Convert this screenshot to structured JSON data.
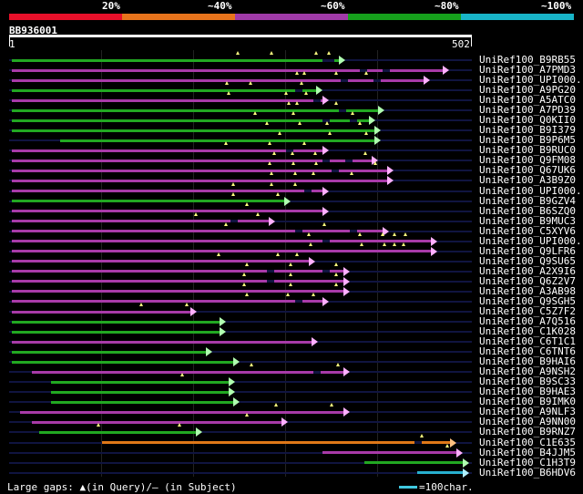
{
  "legend": [
    {
      "label": "20%",
      "color": "#e8102a"
    },
    {
      "label": "~40%",
      "color": "#e8741c"
    },
    {
      "label": "~60%",
      "color": "#a03aa8"
    },
    {
      "label": "~80%",
      "color": "#16a01c"
    },
    {
      "label": "~100%",
      "color": "#18b4c8"
    }
  ],
  "query": {
    "name": "BB936001",
    "start": "1",
    "end": "502"
  },
  "footer": {
    "gaps_text": "Large gaps: ▲(in Query)/– (in Subject)",
    "scale_text": "=100char."
  },
  "hits": [
    {
      "label": "UniRef100_B9RB55",
      "color": "green",
      "start": 3,
      "end": 358,
      "gaps": [
        248,
        285,
        333,
        347
      ],
      "dashes": [
        340,
        345
      ]
    },
    {
      "label": "UniRef100_A7PMD3",
      "color": "purple",
      "start": 3,
      "end": 470,
      "gaps": [],
      "dashes": [
        380,
        405
      ]
    },
    {
      "label": "UniRef100_UPI000..",
      "color": "purple",
      "start": 3,
      "end": 450,
      "gaps": [
        312,
        320,
        355,
        387
      ],
      "dashes": [
        360,
        395
      ]
    },
    {
      "label": "UniRef100_A9PG20",
      "color": "green",
      "start": 3,
      "end": 333,
      "gaps": [
        236,
        262,
        317
      ],
      "dashes": [
        310
      ]
    },
    {
      "label": "UniRef100_A5ATC0",
      "color": "purple",
      "start": 3,
      "end": 340,
      "gaps": [
        238,
        300,
        322
      ],
      "dashes": [
        330
      ]
    },
    {
      "label": "UniRef100_A7PD39",
      "color": "green",
      "start": 3,
      "end": 400,
      "gaps": [
        303,
        312,
        355
      ],
      "dashes": [
        358
      ]
    },
    {
      "label": "UniRef100_Q0KII0",
      "color": "green",
      "start": 3,
      "end": 390,
      "gaps": [
        267,
        308,
        373
      ],
      "dashes": [
        340,
        370
      ]
    },
    {
      "label": "UniRef100_B9I379",
      "color": "green",
      "start": 3,
      "end": 396,
      "gaps": [
        280,
        315,
        345,
        380
      ],
      "dashes": []
    },
    {
      "label": "UniRef100_B9P6M5",
      "color": "green",
      "start": 55,
      "end": 396,
      "gaps": [
        293,
        348,
        387
      ],
      "dashes": []
    },
    {
      "label": "UniRef100_B9RUC0",
      "color": "purple",
      "start": 3,
      "end": 340,
      "gaps": [
        235,
        283,
        320
      ],
      "dashes": [
        300
      ]
    },
    {
      "label": "UniRef100_Q9FM08",
      "color": "purple",
      "start": 3,
      "end": 393,
      "gaps": [
        288,
        307,
        332,
        386
      ],
      "dashes": [
        340,
        365
      ]
    },
    {
      "label": "UniRef100_Q67UK6",
      "color": "purple",
      "start": 3,
      "end": 410,
      "gaps": [
        283,
        308,
        333,
        397
      ],
      "dashes": [
        350
      ]
    },
    {
      "label": "UniRef100_A3B9Z0",
      "color": "purple",
      "start": 3,
      "end": 410,
      "gaps": [
        285,
        310,
        330,
        372
      ],
      "dashes": []
    },
    {
      "label": "UniRef100_UPI000..",
      "color": "purple",
      "start": 3,
      "end": 340,
      "gaps": [
        243,
        285,
        310
      ],
      "dashes": [
        320
      ]
    },
    {
      "label": "UniRef100_B9GZV4",
      "color": "green",
      "start": 3,
      "end": 298,
      "gaps": [
        243,
        292
      ],
      "dashes": []
    },
    {
      "label": "UniRef100_B6SZQ0",
      "color": "purple",
      "start": 3,
      "end": 340,
      "gaps": [
        258
      ],
      "dashes": []
    },
    {
      "label": "UniRef100_B9MUC3",
      "color": "purple",
      "start": 3,
      "end": 282,
      "gaps": [
        203,
        270
      ],
      "dashes": [
        240
      ]
    },
    {
      "label": "UniRef100_C5XYV6",
      "color": "purple",
      "start": 3,
      "end": 405,
      "gaps": [
        235,
        342
      ],
      "dashes": [
        310,
        370
      ]
    },
    {
      "label": "UniRef100_UPI000..",
      "color": "purple",
      "start": 3,
      "end": 458,
      "gaps": [
        325,
        380,
        405,
        418,
        430
      ],
      "dashes": [
        340
      ]
    },
    {
      "label": "UniRef100_Q9LFR6",
      "color": "purple",
      "start": 3,
      "end": 458,
      "gaps": [
        327,
        382,
        407,
        418,
        428
      ],
      "dashes": []
    },
    {
      "label": "UniRef100_Q9SU65",
      "color": "purple",
      "start": 3,
      "end": 325,
      "gaps": [
        227,
        292,
        312
      ],
      "dashes": []
    },
    {
      "label": "UniRef100_A2X9I6",
      "color": "purple",
      "start": 3,
      "end": 363,
      "gaps": [
        258,
        305,
        355
      ],
      "dashes": [
        280,
        340
      ]
    },
    {
      "label": "UniRef100_Q6Z2V7",
      "color": "purple",
      "start": 3,
      "end": 363,
      "gaps": [
        255,
        305,
        355
      ],
      "dashes": [
        280
      ]
    },
    {
      "label": "UniRef100_A3AB98",
      "color": "purple",
      "start": 3,
      "end": 363,
      "gaps": [
        255,
        305,
        355
      ],
      "dashes": []
    },
    {
      "label": "UniRef100_Q9SGH5",
      "color": "purple",
      "start": 3,
      "end": 340,
      "gaps": [
        258,
        302,
        330
      ],
      "dashes": [
        310
      ]
    },
    {
      "label": "UniRef100_C5Z7F2",
      "color": "purple",
      "start": 3,
      "end": 197,
      "gaps": [
        143,
        193
      ],
      "dashes": []
    },
    {
      "label": "UniRef100_A7Q516",
      "color": "green",
      "start": 3,
      "end": 228,
      "gaps": [],
      "dashes": []
    },
    {
      "label": "UniRef100_C1K028",
      "color": "green",
      "start": 3,
      "end": 228,
      "gaps": [],
      "dashes": []
    },
    {
      "label": "UniRef100_C6T1C1",
      "color": "purple",
      "start": 3,
      "end": 328,
      "gaps": [],
      "dashes": []
    },
    {
      "label": "UniRef100_C6TNT6",
      "color": "green",
      "start": 3,
      "end": 213,
      "gaps": [],
      "dashes": []
    },
    {
      "label": "UniRef100_B9HAI6",
      "color": "green",
      "start": 3,
      "end": 243,
      "gaps": [],
      "dashes": []
    },
    {
      "label": "UniRef100_A9NSH2",
      "color": "purple",
      "start": 25,
      "end": 363,
      "gaps": [
        263,
        357
      ],
      "dashes": [
        330
      ]
    },
    {
      "label": "UniRef100_B9SC33",
      "color": "green",
      "start": 45,
      "end": 238,
      "gaps": [
        188
      ],
      "dashes": []
    },
    {
      "label": "UniRef100_B9HAE3",
      "color": "green",
      "start": 45,
      "end": 238,
      "gaps": [],
      "dashes": []
    },
    {
      "label": "UniRef100_B9IMK0",
      "color": "green",
      "start": 45,
      "end": 243,
      "gaps": [],
      "dashes": []
    },
    {
      "label": "UniRef100_A9NLF3",
      "color": "purple",
      "start": 12,
      "end": 363,
      "gaps": [
        290,
        350
      ],
      "dashes": []
    },
    {
      "label": "UniRef100_A9NN00",
      "color": "purple",
      "start": 25,
      "end": 295,
      "gaps": [
        258
      ],
      "dashes": []
    },
    {
      "label": "UniRef100_B9RNZ7",
      "color": "green",
      "start": 33,
      "end": 203,
      "gaps": [
        97,
        185
      ],
      "dashes": []
    },
    {
      "label": "UniRef100_C1E635",
      "color": "orange",
      "start": 101,
      "end": 478,
      "gaps": [
        448
      ],
      "dashes": [
        440
      ]
    },
    {
      "label": "UniRef100_B4JJM5",
      "color": "purple",
      "start": 340,
      "end": 485,
      "gaps": [
        475
      ],
      "dashes": []
    },
    {
      "label": "UniRef100_C1H3T9",
      "color": "green",
      "start": 385,
      "end": 492,
      "gaps": [],
      "dashes": []
    },
    {
      "label": "UniRef100_B6HDV6",
      "color": "cyan",
      "start": 443,
      "end": 492,
      "gaps": [],
      "dashes": []
    }
  ]
}
